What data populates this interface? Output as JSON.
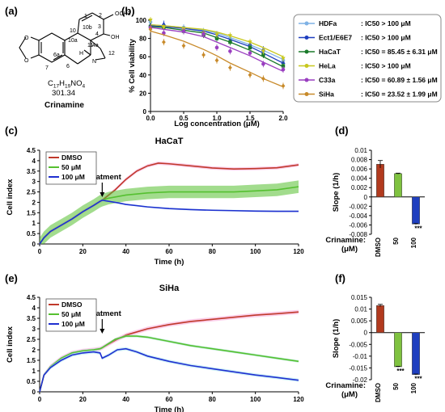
{
  "panels": {
    "a": {
      "label": "(a)",
      "formula": "C17H19NO4",
      "formula_parts": [
        "C",
        "17",
        "H",
        "19",
        "NO",
        "4"
      ],
      "mw": "301.34",
      "name": "Crinamine",
      "atoms": {
        "och3": "OCH3",
        "oh": "OH",
        "h": "H",
        "n": "N",
        "o1": "O",
        "o2": "O"
      },
      "numbers": [
        "1",
        "2",
        "3",
        "4",
        "4a",
        "10",
        "10a",
        "10b",
        "11",
        "12",
        "6a",
        "6",
        "7"
      ]
    },
    "b": {
      "label": "(b)"
    },
    "c": {
      "label": "(c)"
    },
    "d": {
      "label": "(d)"
    },
    "e": {
      "label": "(e)"
    },
    "f": {
      "label": "(f)"
    }
  },
  "colors": {
    "HDFa": "#7fb2e5",
    "Ect1/E6E7": "#1f3fbf",
    "HaCaT": "#1a7a2a",
    "HeLa": "#c8c81e",
    "C33a": "#9a3fc0",
    "SiHa": "#c88a2a",
    "dmso": "#c0392b",
    "um50": "#55c030",
    "um100": "#1f2fd0"
  },
  "chart_data": [
    {
      "id": "b",
      "type": "scatter",
      "xlabel": "Log concentration (μM)",
      "ylabel": "% Cell viability",
      "xlim": [
        0.0,
        2.0
      ],
      "ylim": [
        0,
        100
      ],
      "xticks": [
        "0.0",
        "0.5",
        "1.0",
        "1.5",
        "2.0"
      ],
      "yticks": [
        "0",
        "20",
        "40",
        "60",
        "80",
        "100"
      ],
      "x": [
        0.0,
        0.2,
        0.5,
        0.8,
        1.0,
        1.2,
        1.5,
        1.7,
        2.0
      ],
      "series": [
        {
          "name": "HDFa",
          "ic50": ": IC50 > 100 μM",
          "values": [
            98,
            94,
            92,
            88,
            85,
            80,
            72,
            66,
            56
          ],
          "fit": [
            95,
            94,
            92,
            89,
            86,
            81,
            73,
            67,
            57
          ]
        },
        {
          "name": "Ect1/E6E7",
          "ic50": ": IC50 > 100 μM",
          "values": [
            95,
            96,
            90,
            86,
            82,
            78,
            74,
            68,
            54
          ],
          "fit": [
            94,
            93,
            91,
            88,
            84,
            79,
            71,
            64,
            53
          ]
        },
        {
          "name": "HaCaT",
          "ic50": ": IC50 = 85.45 ± 6.31 μM",
          "values": [
            93,
            92,
            88,
            84,
            80,
            76,
            70,
            62,
            50
          ],
          "fit": [
            93,
            92,
            89,
            86,
            81,
            76,
            67,
            60,
            49
          ]
        },
        {
          "name": "HeLa",
          "ic50": ": IC50 > 100 μM",
          "values": [
            100,
            92,
            90,
            86,
            84,
            83,
            76,
            66,
            58
          ],
          "fit": [
            95,
            94,
            92,
            90,
            87,
            83,
            76,
            70,
            60
          ]
        },
        {
          "name": "C33a",
          "ic50": ": IC50 = 60.89 ± 1.56 μM",
          "values": [
            92,
            86,
            88,
            85,
            70,
            66,
            64,
            52,
            46
          ],
          "fit": [
            92,
            90,
            87,
            82,
            76,
            70,
            61,
            54,
            44
          ]
        },
        {
          "name": "SiHa",
          "ic50": ": IC50 = 23.52 ± 1.99 μM",
          "values": [
            90,
            76,
            72,
            62,
            56,
            48,
            40,
            36,
            28
          ],
          "fit": [
            88,
            84,
            77,
            68,
            61,
            53,
            43,
            36,
            27
          ]
        }
      ]
    },
    {
      "id": "c",
      "type": "line",
      "title": "HaCaT",
      "xlabel": "Time (h)",
      "ylabel": "Cell index",
      "xlim": [
        0,
        120
      ],
      "ylim": [
        0,
        4.5
      ],
      "xticks": [
        "0",
        "20",
        "40",
        "60",
        "80",
        "100",
        "120"
      ],
      "yticks": [
        "0",
        "0.5",
        "1",
        "1.5",
        "2",
        "2.5",
        "3",
        "3.5",
        "4",
        "4.5"
      ],
      "annotation": "Treatment",
      "treatment_x": 29,
      "series": [
        {
          "name": "DMSO",
          "points": [
            [
              0,
              0
            ],
            [
              2,
              0.3
            ],
            [
              5,
              0.6
            ],
            [
              10,
              0.9
            ],
            [
              15,
              1.2
            ],
            [
              20,
              1.55
            ],
            [
              25,
              1.85
            ],
            [
              28,
              2.05
            ],
            [
              29,
              2.1
            ],
            [
              35,
              2.6
            ],
            [
              40,
              3.1
            ],
            [
              45,
              3.5
            ],
            [
              50,
              3.75
            ],
            [
              55,
              3.88
            ],
            [
              60,
              3.85
            ],
            [
              70,
              3.75
            ],
            [
              80,
              3.65
            ],
            [
              90,
              3.6
            ],
            [
              100,
              3.62
            ],
            [
              110,
              3.66
            ],
            [
              120,
              3.8
            ]
          ],
          "err": 0.08
        },
        {
          "name": "50 μM",
          "points": [
            [
              0,
              0
            ],
            [
              2,
              0.3
            ],
            [
              5,
              0.6
            ],
            [
              10,
              0.9
            ],
            [
              15,
              1.2
            ],
            [
              20,
              1.55
            ],
            [
              25,
              1.85
            ],
            [
              28,
              2.05
            ],
            [
              29,
              2.1
            ],
            [
              32,
              2.2
            ],
            [
              40,
              2.35
            ],
            [
              50,
              2.45
            ],
            [
              60,
              2.5
            ],
            [
              70,
              2.5
            ],
            [
              80,
              2.5
            ],
            [
              90,
              2.5
            ],
            [
              100,
              2.55
            ],
            [
              110,
              2.6
            ],
            [
              120,
              2.75
            ]
          ],
          "err": 0.3
        },
        {
          "name": "100 μM",
          "points": [
            [
              0,
              0
            ],
            [
              2,
              0.3
            ],
            [
              5,
              0.6
            ],
            [
              10,
              0.9
            ],
            [
              15,
              1.2
            ],
            [
              20,
              1.55
            ],
            [
              25,
              1.85
            ],
            [
              28,
              2.05
            ],
            [
              29,
              2.1
            ],
            [
              32,
              2.05
            ],
            [
              36,
              1.98
            ],
            [
              40,
              1.9
            ],
            [
              50,
              1.78
            ],
            [
              60,
              1.7
            ],
            [
              70,
              1.65
            ],
            [
              80,
              1.62
            ],
            [
              90,
              1.6
            ],
            [
              100,
              1.58
            ],
            [
              110,
              1.57
            ],
            [
              120,
              1.57
            ]
          ],
          "err": 0.04
        }
      ]
    },
    {
      "id": "d",
      "type": "bar",
      "xlabel": "Crinamine: (μM)",
      "ylabel": "Slope (1/h)",
      "ylim": [
        -0.008,
        0.01
      ],
      "yticks": [
        "-0.008",
        "-0.006",
        "-0.004",
        "-0.002",
        "0",
        "0.002",
        "0.004",
        "0.006",
        "0.008",
        "0.01"
      ],
      "categories": [
        "DMSO",
        "50",
        "100"
      ],
      "values": [
        0.007,
        0.005,
        -0.0058
      ],
      "errors": [
        0.0008,
        0.0001,
        0.0001
      ],
      "significance": [
        "",
        "",
        "***"
      ]
    },
    {
      "id": "e",
      "type": "line",
      "title": "SiHa",
      "xlabel": "Time (h)",
      "ylabel": "Cell index",
      "xlim": [
        0,
        120
      ],
      "ylim": [
        0,
        4.5
      ],
      "xticks": [
        "0",
        "20",
        "40",
        "60",
        "80",
        "100",
        "120"
      ],
      "yticks": [
        "0",
        "0.5",
        "1",
        "1.5",
        "2",
        "2.5",
        "3",
        "3.5",
        "4",
        "4.5"
      ],
      "annotation": "Treatment",
      "treatment_x": 29,
      "series": [
        {
          "name": "DMSO",
          "points": [
            [
              0,
              0
            ],
            [
              2,
              0.8
            ],
            [
              5,
              1.2
            ],
            [
              10,
              1.6
            ],
            [
              15,
              1.85
            ],
            [
              20,
              1.95
            ],
            [
              25,
              2.0
            ],
            [
              28,
              2.05
            ],
            [
              29,
              2.1
            ],
            [
              35,
              2.45
            ],
            [
              40,
              2.7
            ],
            [
              50,
              3.0
            ],
            [
              60,
              3.2
            ],
            [
              70,
              3.35
            ],
            [
              80,
              3.45
            ],
            [
              90,
              3.55
            ],
            [
              100,
              3.65
            ],
            [
              110,
              3.72
            ],
            [
              120,
              3.8
            ]
          ],
          "err": 0.1
        },
        {
          "name": "50 μM",
          "points": [
            [
              0,
              0
            ],
            [
              2,
              0.8
            ],
            [
              5,
              1.2
            ],
            [
              10,
              1.6
            ],
            [
              15,
              1.85
            ],
            [
              20,
              1.95
            ],
            [
              25,
              2.0
            ],
            [
              28,
              2.05
            ],
            [
              29,
              2.1
            ],
            [
              35,
              2.5
            ],
            [
              40,
              2.65
            ],
            [
              45,
              2.65
            ],
            [
              50,
              2.6
            ],
            [
              60,
              2.4
            ],
            [
              70,
              2.2
            ],
            [
              80,
              2.05
            ],
            [
              90,
              1.9
            ],
            [
              100,
              1.75
            ],
            [
              110,
              1.6
            ],
            [
              120,
              1.45
            ]
          ],
          "err": 0.06
        },
        {
          "name": "100 μM",
          "points": [
            [
              0,
              0
            ],
            [
              2,
              0.8
            ],
            [
              5,
              1.15
            ],
            [
              10,
              1.5
            ],
            [
              15,
              1.75
            ],
            [
              20,
              1.85
            ],
            [
              25,
              1.9
            ],
            [
              28,
              1.85
            ],
            [
              29,
              1.6
            ],
            [
              32,
              1.75
            ],
            [
              36,
              2.0
            ],
            [
              40,
              2.05
            ],
            [
              45,
              1.9
            ],
            [
              50,
              1.7
            ],
            [
              60,
              1.45
            ],
            [
              70,
              1.25
            ],
            [
              80,
              1.1
            ],
            [
              90,
              0.95
            ],
            [
              100,
              0.8
            ],
            [
              110,
              0.68
            ],
            [
              120,
              0.55
            ]
          ],
          "err": 0.08
        }
      ]
    },
    {
      "id": "f",
      "type": "bar",
      "xlabel": "Crinamine: (μM)",
      "ylabel": "Slope (1/h)",
      "ylim": [
        -0.02,
        0.015
      ],
      "yticks": [
        "-0.02",
        "-0.015",
        "-0.01",
        "-0.005",
        "0",
        "0.005",
        "0.01",
        "0.015"
      ],
      "categories": [
        "DMSO",
        "50",
        "100"
      ],
      "values": [
        0.0115,
        -0.0145,
        -0.0178
      ],
      "errors": [
        0.0005,
        0.0002,
        0.0002
      ],
      "significance": [
        "",
        "***",
        "***"
      ]
    }
  ]
}
